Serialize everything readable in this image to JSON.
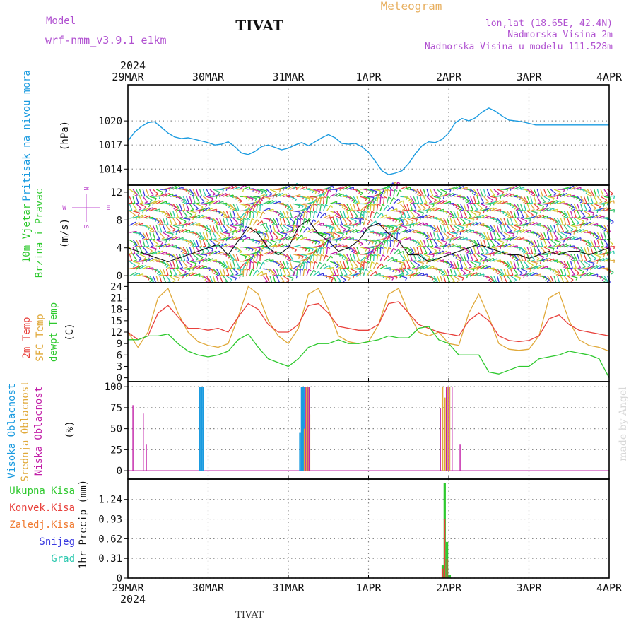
{
  "header": {
    "model_label": "Model",
    "model_name": "wrf-nmm_v3.9.1 e1km",
    "station": "TIVAT",
    "meteogram": "Meteogram",
    "lonlat": "lon,lat (18.65E, 42.4N)",
    "elevation": "Nadmorska Visina 2m",
    "model_elevation": "Nadmorska Visina u modelu 111.528m",
    "footer_station": "TIVAT",
    "made_by": "made by Angel"
  },
  "colors": {
    "pressure": "#1a9be0",
    "t2m": "#e8413c",
    "tsfc": "#e0a93a",
    "dewpt": "#2ec92e",
    "high_cloud": "#1a9be0",
    "mid_cloud": "#e0a93a",
    "low_cloud": "#c21fa8",
    "total_precip": "#2ec92e",
    "conv_precip": "#e8413c",
    "frz_precip": "#f07a30",
    "snow": "#3a3ae0",
    "hail": "#2ec9b0",
    "wind_label": "#2ec92e",
    "compass": "#c04fd0",
    "header_purple": "#b050d0",
    "meteogram_title": "#e8b060"
  },
  "time_axis": {
    "year": "2024",
    "dates": [
      "29MAR",
      "30MAR",
      "31MAR",
      "1APR",
      "2APR",
      "3APR",
      "4APR"
    ]
  },
  "panels": {
    "pressure": {
      "label": "Pritisak na nivou mora",
      "unit": "(hPa)",
      "ticks": [
        "1014",
        "1017",
        "1020"
      ]
    },
    "wind": {
      "label1": "10m Vjetar",
      "label2": "Brzina i Pravac",
      "unit": "(m/s)",
      "ticks": [
        "0",
        "4",
        "8",
        "12"
      ],
      "compass": {
        "n": "N",
        "s": "S",
        "w": "W",
        "e": "E"
      }
    },
    "temp": {
      "label1": "2m Temp",
      "label2": "SFC Temp",
      "label3": "dewpt Temp",
      "unit": "(C)",
      "ticks": [
        "0",
        "3",
        "6",
        "9",
        "12",
        "15",
        "18",
        "21",
        "24"
      ]
    },
    "cloud": {
      "label1": "Visoka Oblacnost",
      "label2": "Srednja Oblacnost",
      "label3": "Niska Oblacnost",
      "unit": "(%)",
      "ticks": [
        "0",
        "25",
        "50",
        "75",
        "100"
      ]
    },
    "precip": {
      "labels": [
        "Ukupna Kisa",
        "Konvek.Kisa",
        "Zaledj.Kisa",
        "Snijeg",
        "Grad"
      ],
      "unit": "1hr Precip (mm)",
      "ticks": [
        "0",
        "0.31",
        "0.62",
        "0.93",
        "1.24"
      ]
    }
  },
  "chart_data": [
    {
      "type": "line",
      "panel": "pressure",
      "ylabel": "Pritisak na nivou mora (hPa)",
      "ylim": [
        1012,
        1024.5
      ],
      "series": [
        {
          "name": "Pritisak na nivou mora",
          "x": [
            0,
            2,
            4,
            6,
            8,
            10,
            12,
            14,
            16,
            18,
            20,
            22,
            24,
            26,
            28,
            30,
            32,
            34,
            36,
            38,
            40,
            42,
            44,
            46,
            48,
            50,
            52,
            54,
            56,
            58,
            60,
            62,
            64,
            66,
            68,
            70,
            72,
            74,
            76,
            78,
            80,
            82,
            84,
            86,
            88,
            90,
            92,
            94,
            96,
            98,
            100,
            102,
            104,
            106,
            108,
            110,
            112,
            114,
            116,
            118,
            120,
            122,
            124,
            126,
            128,
            130,
            132,
            134,
            136,
            138,
            140,
            142,
            144
          ],
          "values": [
            1017.5,
            1018.6,
            1019.3,
            1019.8,
            1019.9,
            1019.2,
            1018.5,
            1018.0,
            1017.8,
            1017.9,
            1017.7,
            1017.5,
            1017.3,
            1017.0,
            1017.1,
            1017.4,
            1016.8,
            1016.0,
            1015.8,
            1016.2,
            1016.8,
            1017.0,
            1016.7,
            1016.4,
            1016.6,
            1017.0,
            1017.3,
            1016.9,
            1017.4,
            1017.9,
            1018.3,
            1017.9,
            1017.2,
            1017.1,
            1017.2,
            1016.8,
            1016.1,
            1015.0,
            1013.8,
            1013.3,
            1013.5,
            1013.8,
            1014.7,
            1015.9,
            1016.9,
            1017.4,
            1017.3,
            1017.7,
            1018.5,
            1019.8,
            1020.3,
            1020.0,
            1020.4,
            1021.1,
            1021.6,
            1021.2,
            1020.6,
            1020.1,
            1020.0,
            1019.9,
            1019.7,
            1019.5,
            1019.5,
            1019.5,
            1019.5,
            1019.5,
            1019.5,
            1019.5,
            1019.5,
            1019.5,
            1019.5,
            1019.5,
            1019.5
          ]
        }
      ]
    },
    {
      "type": "line",
      "panel": "wind",
      "ylabel": "10m Vjetar Brzina i Pravac (m/s)",
      "ylim": [
        -1,
        13
      ],
      "series": [
        {
          "name": "wind speed",
          "x": [
            0,
            3,
            6,
            9,
            12,
            15,
            18,
            21,
            24,
            27,
            30,
            33,
            36,
            39,
            42,
            45,
            48,
            51,
            54,
            57,
            60,
            63,
            66,
            69,
            72,
            75,
            78,
            81,
            84,
            87,
            90,
            93,
            96,
            99,
            102,
            105,
            108,
            111,
            114,
            117,
            120,
            123,
            126,
            129,
            132,
            135,
            138,
            141,
            144
          ],
          "values": [
            4,
            3.5,
            3,
            2.5,
            2,
            2.5,
            3,
            3.5,
            4,
            4.5,
            3,
            5,
            7,
            6,
            4,
            3,
            4,
            7,
            8,
            6,
            5,
            3.5,
            4,
            5,
            7,
            7.5,
            6,
            5,
            3,
            3,
            2,
            2.5,
            3,
            3.5,
            4,
            4.5,
            4,
            3.5,
            3,
            3,
            2.5,
            3,
            3.5,
            3,
            3.5,
            3.5,
            3,
            3.5,
            4
          ]
        }
      ]
    },
    {
      "type": "line",
      "panel": "temp",
      "ylabel": "Temp (C)",
      "ylim": [
        -1,
        25
      ],
      "series": [
        {
          "name": "2m Temp",
          "x": [
            0,
            3,
            6,
            9,
            12,
            15,
            18,
            21,
            24,
            27,
            30,
            33,
            36,
            39,
            42,
            45,
            48,
            51,
            54,
            57,
            60,
            63,
            66,
            69,
            72,
            75,
            78,
            81,
            84,
            87,
            90,
            93,
            96,
            99,
            102,
            105,
            108,
            111,
            114,
            117,
            120,
            123,
            126,
            129,
            132,
            135,
            138,
            141,
            144
          ],
          "values": [
            12,
            10,
            11,
            17,
            19,
            16,
            13,
            13,
            12.5,
            13,
            12,
            16,
            19.5,
            18,
            14,
            12,
            12,
            14,
            19,
            19.5,
            17,
            13.5,
            13,
            12.5,
            12.5,
            14,
            19.5,
            20,
            17,
            14,
            13,
            12,
            11.5,
            11,
            15,
            17,
            15,
            11,
            9.8,
            9.5,
            9.8,
            11,
            15.5,
            16.5,
            14,
            12.5,
            12,
            11.5,
            11
          ]
        },
        {
          "name": "SFC Temp",
          "x": [
            0,
            3,
            6,
            9,
            12,
            15,
            18,
            21,
            24,
            27,
            30,
            33,
            36,
            39,
            42,
            45,
            48,
            51,
            54,
            57,
            60,
            63,
            66,
            69,
            72,
            75,
            78,
            81,
            84,
            87,
            90,
            93,
            96,
            99,
            102,
            105,
            108,
            111,
            114,
            117,
            120,
            123,
            126,
            129,
            132,
            135,
            138,
            141,
            144
          ],
          "values": [
            12,
            8,
            12,
            21,
            23.5,
            17,
            12,
            9.5,
            8.5,
            8,
            9,
            16,
            24,
            22,
            15,
            11,
            9,
            13,
            22,
            23.5,
            18,
            11,
            9.5,
            9,
            9.5,
            14,
            22,
            23.5,
            17,
            12,
            11,
            12,
            9,
            8.5,
            17,
            22,
            16,
            9,
            7.5,
            7.2,
            7.5,
            11,
            21,
            22.5,
            15,
            10,
            8.5,
            8,
            7
          ]
        },
        {
          "name": "dewpt Temp",
          "x": [
            0,
            3,
            6,
            9,
            12,
            15,
            18,
            21,
            24,
            27,
            30,
            33,
            36,
            39,
            42,
            45,
            48,
            51,
            54,
            57,
            60,
            63,
            66,
            69,
            72,
            75,
            78,
            81,
            84,
            87,
            90,
            93,
            96,
            99,
            102,
            105,
            108,
            111,
            114,
            117,
            120,
            123,
            126,
            129,
            132,
            135,
            138,
            141,
            144
          ],
          "values": [
            10,
            10,
            11,
            11,
            11.5,
            9,
            7,
            6,
            5.5,
            6,
            7,
            10,
            11.5,
            8,
            5,
            4,
            3,
            5,
            8,
            9,
            9,
            10,
            9,
            9,
            9.5,
            10,
            11,
            10.5,
            10.5,
            13,
            13.5,
            10,
            9,
            6,
            6,
            6,
            1.5,
            1,
            2,
            3,
            3,
            5,
            5.5,
            6,
            7,
            6.5,
            6,
            5,
            0
          ]
        }
      ]
    },
    {
      "type": "bar",
      "panel": "cloud",
      "ylabel": "Oblacnost (%)",
      "ylim": [
        0,
        105
      ],
      "series": [
        {
          "name": "Visoka Oblacnost",
          "x": [
            21.5,
            22,
            22.5,
            51.5,
            52,
            52.3,
            52.6
          ],
          "values": [
            100,
            100,
            100,
            45,
            100,
            100,
            100
          ]
        },
        {
          "name": "Srednja Oblacnost",
          "x": [
            52.8,
            53.4,
            53.9,
            54.4,
            94.2,
            94.9,
            95.6,
            96.3
          ],
          "values": [
            50,
            100,
            100,
            67,
            100,
            87,
            100,
            100
          ]
        },
        {
          "name": "Niska Oblacnost",
          "x": [
            1.5,
            4.6,
            5.5,
            53.1,
            53.7,
            54.2,
            93.5,
            95.3,
            96.0,
            97.0,
            99.4
          ],
          "values": [
            78,
            68,
            31,
            100,
            100,
            100,
            74,
            100,
            100,
            100,
            31
          ]
        }
      ]
    },
    {
      "type": "bar",
      "panel": "precip",
      "ylabel": "1hr Precip (mm)",
      "ylim": [
        0,
        1.55
      ],
      "series": [
        {
          "name": "Ukupna Kisa",
          "x": [
            94.2,
            94.8,
            95.5,
            96.3
          ],
          "values": [
            0.2,
            1.5,
            0.57,
            0.05
          ]
        },
        {
          "name": "Konvek.Kisa",
          "x": [
            94.2,
            94.8,
            95.5
          ],
          "values": [
            0.15,
            0.93,
            0.3
          ]
        }
      ]
    }
  ]
}
